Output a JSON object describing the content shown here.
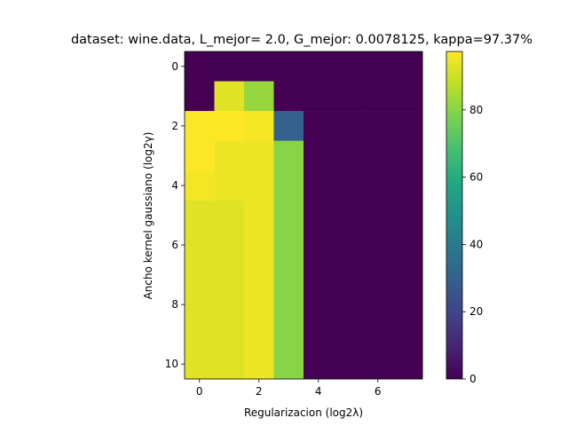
{
  "chart_data": {
    "type": "heatmap",
    "title": "dataset: wine.data, L_mejor= 2.0, G_mejor: 0.0078125, kappa=97.37%",
    "xlabel": "Regularizacion  (log2λ)",
    "ylabel": "Ancho kernel gaussiano (log2γ)",
    "x_ticks": [
      0,
      2,
      4,
      6
    ],
    "y_ticks": [
      0,
      2,
      4,
      6,
      8,
      10
    ],
    "xlim": [
      -0.5,
      7.5
    ],
    "ylim": [
      10.5,
      -0.5
    ],
    "colormap": "viridis",
    "colorbar": {
      "range": [
        0,
        97.37
      ],
      "ticks": [
        0,
        20,
        40,
        60,
        80
      ]
    },
    "x_values": [
      0,
      1,
      2,
      3,
      4,
      5,
      6,
      7
    ],
    "y_values": [
      0,
      1,
      2,
      3,
      4,
      5,
      6,
      7,
      8,
      9,
      10
    ],
    "values": [
      [
        0,
        0,
        0,
        0,
        0,
        0,
        0,
        0
      ],
      [
        0,
        93,
        82,
        0,
        0,
        0,
        0,
        0
      ],
      [
        97,
        97.37,
        96,
        30,
        0,
        0,
        0,
        0
      ],
      [
        97,
        95,
        95,
        80,
        0,
        0,
        0,
        0
      ],
      [
        96,
        95,
        95,
        80,
        0,
        0,
        0,
        0
      ],
      [
        93,
        93,
        95,
        80,
        0,
        0,
        0,
        0
      ],
      [
        93,
        93,
        95,
        80,
        0,
        0,
        0,
        0
      ],
      [
        93,
        93,
        95,
        80,
        0,
        0,
        0,
        0
      ],
      [
        93,
        93,
        95,
        80,
        0,
        0,
        0,
        0
      ],
      [
        93,
        93,
        95,
        80,
        0,
        0,
        0,
        0
      ],
      [
        93,
        93,
        95,
        80,
        0,
        0,
        0,
        0
      ]
    ]
  }
}
